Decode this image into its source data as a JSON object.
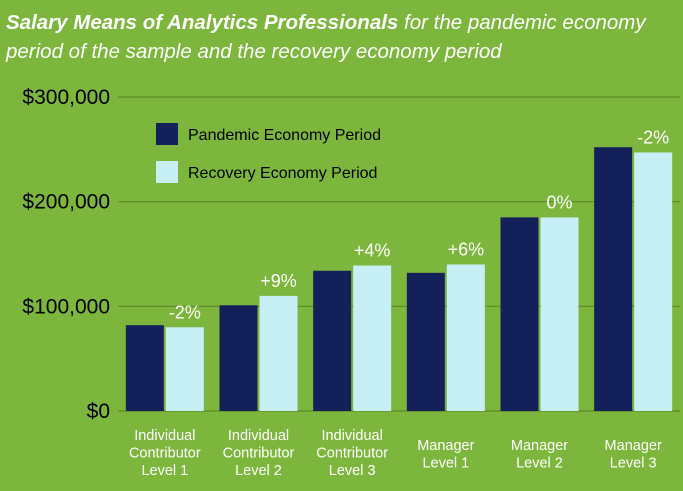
{
  "title": {
    "bold": "Salary Means of Analytics Professionals",
    "rest": " for the pandemic economy period of the sample and the recovery economy period"
  },
  "colors": {
    "background": "#7db63c",
    "gridline": "#5d8a2a",
    "pandemic": "#13205a",
    "recovery": "#c7f0f6",
    "text_light": "#ffffff",
    "text_dark": "#000000"
  },
  "chart_data": {
    "type": "bar",
    "title": "Salary Means of Analytics Professionals for the pandemic economy period of the sample and the recovery economy period",
    "categories": [
      [
        "Individual",
        "Contributor",
        "Level 1"
      ],
      [
        "Individual",
        "Contributor",
        "Level 2"
      ],
      [
        "Individual",
        "Contributor",
        "Level 3"
      ],
      [
        "Manager",
        "Level 1"
      ],
      [
        "Manager",
        "Level 2"
      ],
      [
        "Manager",
        "Level 3"
      ]
    ],
    "series": [
      {
        "name": "Pandemic Economy Period",
        "color": "#13205a",
        "values": [
          82000,
          101000,
          134000,
          132000,
          185000,
          252000
        ]
      },
      {
        "name": "Recovery Economy Period",
        "color": "#c7f0f6",
        "values": [
          80000,
          110000,
          139000,
          140000,
          185000,
          247000
        ]
      }
    ],
    "data_labels": [
      "-2%",
      "+9%",
      "+4%",
      "+6%",
      "0%",
      "-2%"
    ],
    "yticks": [
      0,
      100000,
      200000,
      300000
    ],
    "ytick_labels": [
      "$0",
      "$100,000",
      "$200,000",
      "$300,000"
    ],
    "ylim": [
      0,
      300000
    ],
    "grid": true,
    "legend_position": "top-left"
  }
}
